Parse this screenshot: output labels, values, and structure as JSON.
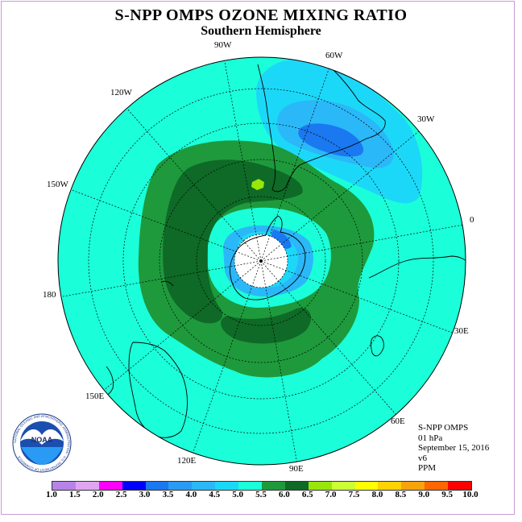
{
  "title": "S-NPP OMPS OZONE MIXING RATIO",
  "subtitle": "Southern Hemisphere",
  "lon_labels": [
    "90W",
    "60W",
    "30W",
    "120W",
    "150W",
    "0",
    "180",
    "30E",
    "150E",
    "60E",
    "120E",
    "90E"
  ],
  "info": {
    "instrument": "S-NPP OMPS",
    "level": "01 hPa",
    "date": "September 15, 2016",
    "version": "v6",
    "units": "PPM"
  },
  "logo_text": "NOAA",
  "logo_ring_text": "NATIONAL OCEANIC AND ATMOSPHERIC ADMINISTRATION · U.S. DEPARTMENT OF COMMERCE",
  "colorbar": {
    "ticks": [
      "1.0",
      "1.5",
      "2.0",
      "2.5",
      "3.0",
      "3.5",
      "4.0",
      "4.5",
      "5.0",
      "5.5",
      "6.0",
      "6.5",
      "7.0",
      "7.5",
      "8.0",
      "8.5",
      "9.0",
      "9.5",
      "10.0"
    ],
    "colors": [
      "#b883e8",
      "#e0a5f0",
      "#ff00ff",
      "#0000ff",
      "#1a78f0",
      "#2a9bf5",
      "#2ab8f8",
      "#1cd8f8",
      "#1affd9",
      "#1e9a3c",
      "#0e6a26",
      "#99e60a",
      "#ccff33",
      "#ffff00",
      "#ffd200",
      "#f7a30b",
      "#ff6600",
      "#ff0000",
      "#7a4c38"
    ]
  },
  "colors": {
    "background_level": "#1affd9",
    "high_band": "#1e9a3c",
    "highest_band": "#0e6a26",
    "low_light": "#1cd8f8",
    "low_mid": "#2ab8f8",
    "low_deep": "#1a78f0",
    "peak_spot": "#99e60a"
  }
}
